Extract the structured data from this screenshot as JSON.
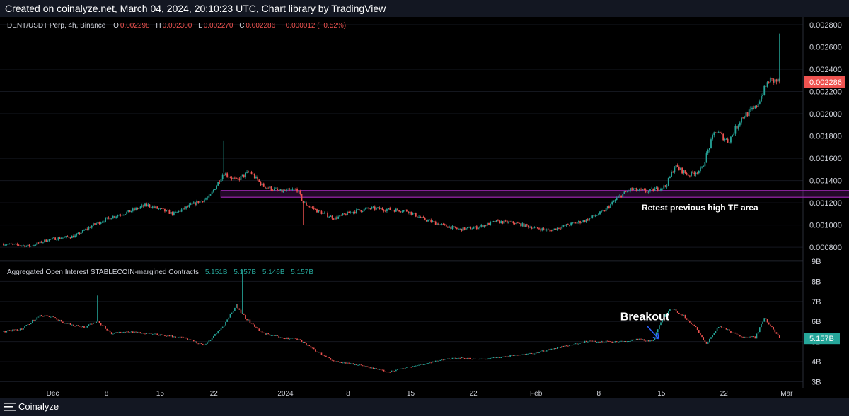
{
  "header": {
    "text": "Created on coinalyze.net, March 04, 2024, 20:10:23 UTC, Chart library by TradingView"
  },
  "footer": {
    "brand": "Coinalyze",
    "icon": "menu-lines-icon"
  },
  "price_legend": {
    "symbol": "DENT/USDT Perp, 4h, Binance",
    "o_label": "O",
    "o_value": "0.002298",
    "h_label": "H",
    "h_value": "0.002300",
    "l_label": "L",
    "l_value": "0.002270",
    "c_label": "C",
    "c_value": "0.002286",
    "change": "−0.000012 (−0.52%)"
  },
  "oi_legend": {
    "title": "Aggregated Open Interest STABLECOIN-margined Contracts",
    "v1": "5.151B",
    "v2": "5.157B",
    "v3": "5.146B",
    "v4": "5.157B"
  },
  "annotations": {
    "retest": "Retest previous high TF area",
    "breakout": "Breakout"
  },
  "colors": {
    "up": "#26a69a",
    "down": "#ef5350",
    "zone": "#9c27b0",
    "badge_price": "#ef5350",
    "badge_oi": "#26a69a",
    "arrow": "#2962ff"
  },
  "chart_data": [
    {
      "type": "candlestick",
      "title": "DENT/USDT Perp, 4h, Binance",
      "y_ticks": [
        "0.000800",
        "0.001000",
        "0.001200",
        "0.001400",
        "0.001600",
        "0.001800",
        "0.002000",
        "0.002200",
        "0.002400",
        "0.002600",
        "0.002800"
      ],
      "ylim": [
        0.00068,
        0.00287
      ],
      "last_value_label": "0.002286",
      "last_value": 0.002286,
      "zone": {
        "y_from": 0.00125,
        "y_to": 0.00131,
        "x_from": 24.3,
        "x_to": 95.0,
        "label": "Retest previous high TF area"
      },
      "series_points": [
        [
          0,
          0.00083
        ],
        [
          3,
          0.00081
        ],
        [
          5,
          0.00087
        ],
        [
          8,
          0.0009
        ],
        [
          10,
          0.001
        ],
        [
          12,
          0.00107
        ],
        [
          14,
          0.00112
        ],
        [
          16,
          0.00118
        ],
        [
          17.5,
          0.00114
        ],
        [
          19,
          0.0011
        ],
        [
          21,
          0.00118
        ],
        [
          23,
          0.00125
        ],
        [
          24.6,
          0.00147
        ],
        [
          26,
          0.0014
        ],
        [
          27.5,
          0.00148
        ],
        [
          29,
          0.00135
        ],
        [
          31,
          0.0013
        ],
        [
          32.8,
          0.00132
        ],
        [
          33.5,
          0.0012
        ],
        [
          35,
          0.00113
        ],
        [
          37,
          0.00106
        ],
        [
          39,
          0.00112
        ],
        [
          41,
          0.00115
        ],
        [
          43,
          0.00114
        ],
        [
          45,
          0.00113
        ],
        [
          47,
          0.00105
        ],
        [
          49,
          0.001
        ],
        [
          51,
          0.00096
        ],
        [
          53,
          0.00098
        ],
        [
          55,
          0.00103
        ],
        [
          57,
          0.00102
        ],
        [
          59,
          0.00098
        ],
        [
          61,
          0.00095
        ],
        [
          63,
          0.001
        ],
        [
          65,
          0.00104
        ],
        [
          67,
          0.00112
        ],
        [
          68.7,
          0.00125
        ],
        [
          70,
          0.00132
        ],
        [
          72,
          0.0013
        ],
        [
          74,
          0.00135
        ],
        [
          75,
          0.00153
        ],
        [
          76.5,
          0.00145
        ],
        [
          78,
          0.0015
        ],
        [
          79.5,
          0.00185
        ],
        [
          81,
          0.00175
        ],
        [
          82.5,
          0.00197
        ],
        [
          84,
          0.00205
        ],
        [
          85.5,
          0.0023
        ],
        [
          86.8,
          0.00229
        ]
      ],
      "spikes": [
        [
          24.6,
          0.00176
        ],
        [
          33.5,
          0.001
        ],
        [
          86.7,
          0.00272
        ]
      ]
    },
    {
      "type": "bar",
      "title": "Aggregated Open Interest STABLECOIN-margined Contracts",
      "y_ticks": [
        "3B",
        "4B",
        "5B",
        "6B",
        "7B",
        "8B",
        "9B"
      ],
      "ylim": [
        2.7,
        9.0
      ],
      "last_value_label": "5.157B",
      "last_value": 5.157,
      "x_ticks": [
        "Dec",
        "8",
        "15",
        "22",
        "2024",
        "8",
        "15",
        "22",
        "Feb",
        "8",
        "15",
        "22",
        "Mar"
      ],
      "x_tick_pos": [
        5.5,
        11.5,
        17.5,
        23.5,
        31.5,
        38.5,
        45.5,
        52.5,
        59.5,
        66.5,
        73.5,
        80.5,
        87.5
      ],
      "series_points": [
        [
          0,
          5.5
        ],
        [
          2,
          5.6
        ],
        [
          4,
          6.3
        ],
        [
          5,
          6.3
        ],
        [
          7,
          5.9
        ],
        [
          9,
          5.7
        ],
        [
          10.5,
          6.0
        ],
        [
          12,
          5.4
        ],
        [
          14,
          5.5
        ],
        [
          16,
          5.4
        ],
        [
          18,
          5.3
        ],
        [
          20,
          5.2
        ],
        [
          22.5,
          4.8
        ],
        [
          24.6,
          5.8
        ],
        [
          26,
          6.8
        ],
        [
          27,
          6.2
        ],
        [
          29,
          5.4
        ],
        [
          31,
          5.2
        ],
        [
          33,
          5.1
        ],
        [
          35,
          4.5
        ],
        [
          37,
          4.0
        ],
        [
          39,
          3.9
        ],
        [
          41,
          3.7
        ],
        [
          43,
          3.5
        ],
        [
          45,
          3.7
        ],
        [
          47,
          3.9
        ],
        [
          49,
          4.1
        ],
        [
          51,
          4.2
        ],
        [
          53,
          4.1
        ],
        [
          55,
          4.2
        ],
        [
          57,
          4.3
        ],
        [
          59,
          4.4
        ],
        [
          61,
          4.6
        ],
        [
          63,
          4.8
        ],
        [
          65,
          5.0
        ],
        [
          67,
          5.0
        ],
        [
          69,
          5.0
        ],
        [
          71,
          5.1
        ],
        [
          72.5,
          5.0
        ],
        [
          73.5,
          6.0
        ],
        [
          74.5,
          6.7
        ],
        [
          76,
          6.3
        ],
        [
          77.5,
          5.6
        ],
        [
          78.5,
          4.9
        ],
        [
          80,
          5.8
        ],
        [
          82,
          5.3
        ],
        [
          84,
          5.2
        ],
        [
          85,
          6.2
        ],
        [
          86.8,
          5.16
        ]
      ],
      "spikes": [
        [
          10.5,
          7.3
        ],
        [
          26.7,
          8.6
        ]
      ],
      "annotation": {
        "label": "Breakout",
        "x": 73.5,
        "y": 5.0
      }
    }
  ]
}
